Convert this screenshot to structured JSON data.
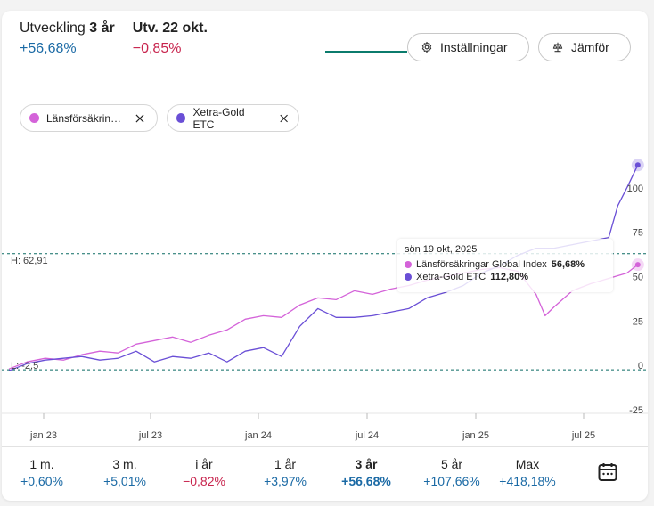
{
  "summary": {
    "period_label": "Utveckling",
    "period_bold": "3 år",
    "period_value": "+56,68%",
    "day_label": "Utv. 22 okt.",
    "day_value": "−0,85%"
  },
  "buttons": {
    "settings": "Inställningar",
    "compare": "Jämför"
  },
  "chips": [
    {
      "label": "Länsförsäkrin…",
      "color": "#d463d9"
    },
    {
      "label": "Xetra-Gold ETC",
      "color": "#6a4fd6"
    }
  ],
  "markers": {
    "high": "H: 62,91",
    "low": "L: -2,5"
  },
  "tooltip": {
    "date": "sön 19 okt, 2025",
    "rows": [
      {
        "name": "Länsförsäkringar Global Index",
        "value": "56,68%",
        "color": "#d463d9"
      },
      {
        "name": "Xetra-Gold ETC",
        "value": "112,80%",
        "color": "#6a4fd6"
      }
    ]
  },
  "tabs": [
    {
      "name": "1 m.",
      "value": "+0,60%",
      "sign": "pos"
    },
    {
      "name": "3 m.",
      "value": "+5,01%",
      "sign": "pos"
    },
    {
      "name": "i år",
      "value": "−0,82%",
      "sign": "neg"
    },
    {
      "name": "1 år",
      "value": "+3,97%",
      "sign": "pos"
    },
    {
      "name": "3 år",
      "value": "+56,68%",
      "sign": "pos",
      "active": true
    },
    {
      "name": "5 år",
      "value": "+107,66%",
      "sign": "pos"
    },
    {
      "name": "Max",
      "value": "+418,18%",
      "sign": "pos"
    }
  ],
  "chart_data": {
    "type": "line",
    "x_ticks": [
      "jan 23",
      "jul 23",
      "jan 24",
      "jul 24",
      "jan 25",
      "jul 25"
    ],
    "y_ticks": [
      100,
      75,
      50,
      25,
      0,
      -25
    ],
    "ylim": [
      -27,
      128
    ],
    "xlim": [
      0,
      35
    ],
    "grid": false,
    "reference_lines": [
      62.91,
      -2.5
    ],
    "series": [
      {
        "name": "Länsförsäkringar Global Index",
        "color": "#d463d9",
        "x": [
          0,
          1,
          2,
          3,
          4,
          5,
          6,
          7,
          8,
          9,
          10,
          11,
          12,
          13,
          14,
          15,
          16,
          17,
          18,
          19,
          20,
          21,
          22,
          23,
          24,
          25,
          26,
          27,
          28,
          29,
          29.5,
          30,
          31,
          32,
          33,
          34,
          34.6
        ],
        "y": [
          -2,
          2,
          4,
          3,
          6,
          8,
          7,
          12,
          14,
          16,
          13,
          17,
          20,
          26,
          28,
          27,
          34,
          38,
          37,
          42,
          40,
          43,
          45,
          48,
          50,
          52,
          54,
          55,
          53,
          40,
          28,
          33,
          42,
          46,
          49,
          52,
          56.7
        ]
      },
      {
        "name": "Xetra-Gold ETC",
        "color": "#6a4fd6",
        "x": [
          0,
          1,
          2,
          3,
          4,
          5,
          6,
          7,
          8,
          9,
          10,
          11,
          12,
          13,
          14,
          15,
          16,
          17,
          18,
          19,
          20,
          21,
          22,
          23,
          24,
          25,
          26,
          27,
          28,
          29,
          30,
          31,
          32,
          33,
          33.5,
          34,
          34.6
        ],
        "y": [
          -3,
          1,
          3,
          4,
          5,
          3,
          4,
          8,
          2,
          5,
          4,
          7,
          2,
          8,
          10,
          5,
          22,
          32,
          27,
          27,
          28,
          30,
          32,
          38,
          41,
          45,
          52,
          56,
          62,
          66,
          66,
          68,
          70,
          72,
          90,
          100,
          112.8
        ]
      }
    ]
  }
}
